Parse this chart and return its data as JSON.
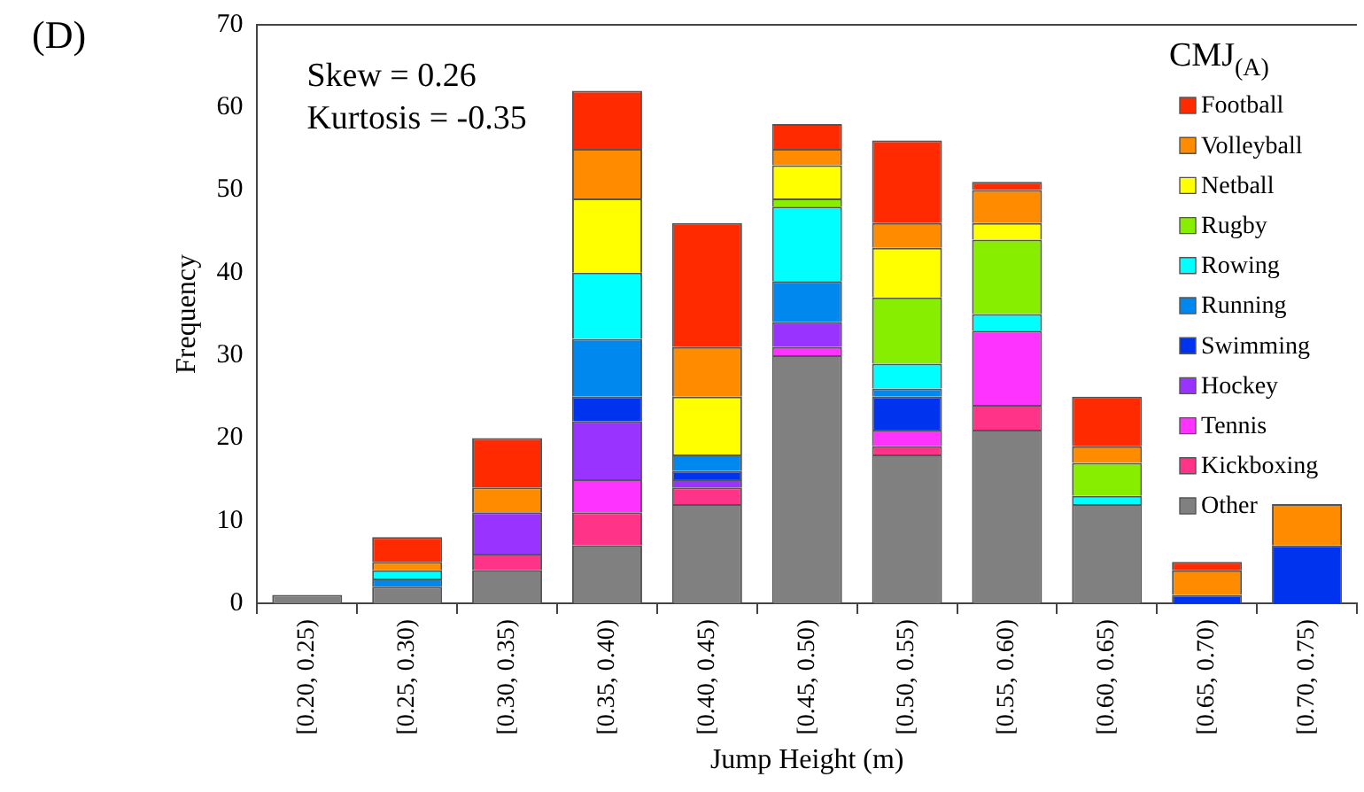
{
  "chart_data": {
    "type": "bar",
    "stacked": true,
    "xlabel": "Jump Height (m)",
    "ylabel": "Frequency",
    "legend_title": "CMJ$_{(A)}$",
    "legend": "top right",
    "grid": false,
    "annotations": [
      "(D)",
      "Skew = 0.26",
      "Kurtosis = -0.35"
    ],
    "categories": [
      "[0.20, 0.25)",
      "[0.25, 0.30)",
      "[0.30, 0.35)",
      "[0.35, 0.40)",
      "[0.40, 0.45)",
      "[0.45, 0.50)",
      "[0.50, 0.55)",
      "[0.55, 0.60)",
      "[0.60, 0.65)",
      "[0.65, 0.70)",
      "[0.70, 0.75)"
    ],
    "ylim": [
      0,
      70
    ],
    "yticks": [
      0,
      10,
      20,
      30,
      40,
      50,
      60,
      70
    ],
    "series": [
      {
        "name": "Other",
        "color": "#808080",
        "values": [
          1,
          2,
          4,
          7,
          12,
          30,
          18,
          21,
          12,
          0,
          0
        ]
      },
      {
        "name": "Kickboxing",
        "color": "#ff3388",
        "values": [
          0,
          0,
          2,
          4,
          2,
          0,
          1,
          3,
          0,
          0,
          0
        ]
      },
      {
        "name": "Tennis",
        "color": "#ff33ff",
        "values": [
          0,
          0,
          0,
          4,
          0,
          1,
          2,
          9,
          0,
          0,
          0
        ]
      },
      {
        "name": "Hockey",
        "color": "#9933ff",
        "values": [
          0,
          0,
          5,
          7,
          1,
          3,
          0,
          0,
          0,
          0,
          0
        ]
      },
      {
        "name": "Swimming",
        "color": "#0033ee",
        "values": [
          0,
          0,
          0,
          3,
          1,
          0,
          4,
          0,
          0,
          1,
          7
        ]
      },
      {
        "name": "Running",
        "color": "#0088ee",
        "values": [
          0,
          1,
          0,
          7,
          2,
          5,
          1,
          0,
          0,
          0,
          0
        ]
      },
      {
        "name": "Rowing",
        "color": "#00ffff",
        "values": [
          0,
          1,
          0,
          8,
          0,
          9,
          3,
          2,
          1,
          0,
          0
        ]
      },
      {
        "name": "Rugby",
        "color": "#88ee00",
        "values": [
          0,
          0,
          0,
          0,
          0,
          1,
          8,
          9,
          4,
          0,
          0
        ]
      },
      {
        "name": "Netball",
        "color": "#ffff00",
        "values": [
          0,
          0,
          0,
          9,
          7,
          4,
          6,
          2,
          0,
          0,
          0
        ]
      },
      {
        "name": "Volleyball",
        "color": "#ff8c00",
        "values": [
          0,
          1,
          3,
          6,
          6,
          2,
          3,
          4,
          2,
          3,
          5
        ]
      },
      {
        "name": "Football",
        "color": "#ff2a00",
        "values": [
          0,
          3,
          6,
          7,
          15,
          3,
          10,
          1,
          6,
          1,
          0
        ]
      }
    ]
  }
}
